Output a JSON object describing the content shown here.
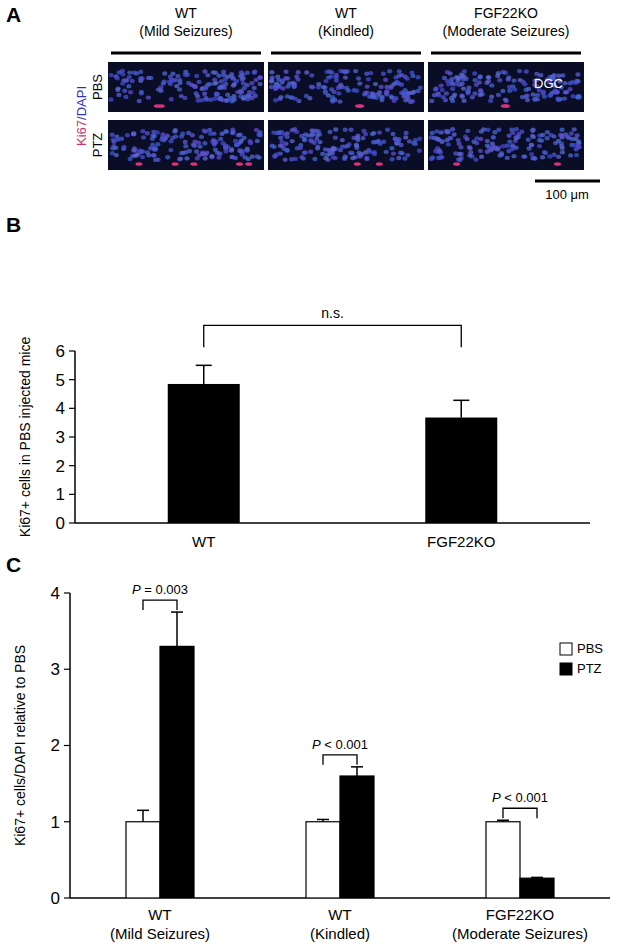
{
  "image_panel": {
    "panel_label": "A",
    "stain_label": "Ki67/DAPI",
    "columns": [
      "WT (Mild Seizures)",
      "WT (Kindled)",
      "FGF22KO (Moderate Seizures)"
    ],
    "rows": [
      "PBS",
      "PTZ"
    ],
    "region_label": "DGC",
    "scale_bar": "100 μm"
  },
  "chart_data": [
    {
      "panel_label": "B",
      "type": "bar",
      "y_label": "Ki67+ cells in PBS injected mice",
      "categories": [
        "WT",
        "FGF22KO"
      ],
      "values": [
        4.85,
        3.68
      ],
      "errors": [
        0.65,
        0.6
      ],
      "color": "#000000",
      "ylim": [
        0,
        6
      ],
      "yticks": [
        0,
        1,
        2,
        3,
        4,
        5,
        6
      ],
      "annotations": [
        {
          "text": "n.s.",
          "between": [
            0,
            1
          ]
        }
      ]
    },
    {
      "panel_label": "C",
      "type": "bar",
      "y_label": "Ki67+ cells/DAPI relative to PBS",
      "categories": [
        "WT (Mild Seizures)",
        "WT (Kindled)",
        "FGF22KO (Moderate Seizures)"
      ],
      "series": [
        {
          "name": "PBS",
          "color": "#ffffff",
          "values": [
            1,
            1,
            1
          ],
          "errors": [
            0.15,
            0.03,
            0.02
          ]
        },
        {
          "name": "PTZ",
          "color": "#000000",
          "values": [
            3.3,
            1.6,
            0.26
          ],
          "errors": [
            0.45,
            0.12,
            0.01
          ]
        }
      ],
      "ylim": [
        0,
        4
      ],
      "yticks": [
        0,
        1,
        2,
        3,
        4
      ],
      "legend": "upper right",
      "annotations": [
        {
          "text": "P = 0.003",
          "category": 0
        },
        {
          "text": "P < 0.001",
          "category": 1
        },
        {
          "text": "P < 0.001",
          "category": 2
        }
      ]
    }
  ]
}
